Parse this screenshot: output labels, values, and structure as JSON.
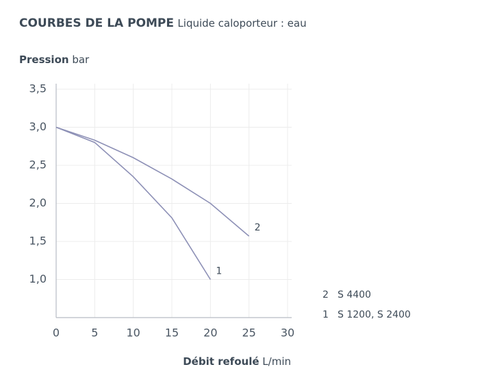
{
  "chart_data": {
    "type": "line",
    "title": "COURBES DE LA POMPE",
    "subtitle": "Liquide caloporteur : eau",
    "y_label": {
      "name": "Pression",
      "unit": "bar"
    },
    "x_label": {
      "name": "Débit refoulé",
      "unit": "L/min"
    },
    "series": [
      {
        "label": "2",
        "name": "S 4400",
        "color": "#8d90b6",
        "x": [
          0,
          5,
          10,
          15,
          20,
          25
        ],
        "values": [
          3.0,
          2.83,
          2.6,
          2.32,
          2.0,
          1.57
        ]
      },
      {
        "label": "1",
        "name": "S 1200, S 2400",
        "color": "#8d90b6",
        "x": [
          0,
          5,
          10,
          15,
          20
        ],
        "values": [
          3.0,
          2.8,
          2.35,
          1.81,
          1.0
        ]
      }
    ],
    "xlim": [
      0,
      30
    ],
    "xticks": [
      0,
      5,
      10,
      15,
      20,
      25,
      30
    ],
    "ylim": [
      0.5,
      3.5
    ],
    "yticks": [
      {
        "value": 1.0,
        "label": "1,0"
      },
      {
        "value": 1.5,
        "label": "1,5"
      },
      {
        "value": 2.0,
        "label": "2,0"
      },
      {
        "value": 2.5,
        "label": "2,5"
      },
      {
        "value": 3.0,
        "label": "3,0"
      },
      {
        "value": 3.5,
        "label": "3,5"
      }
    ],
    "grid": true
  }
}
